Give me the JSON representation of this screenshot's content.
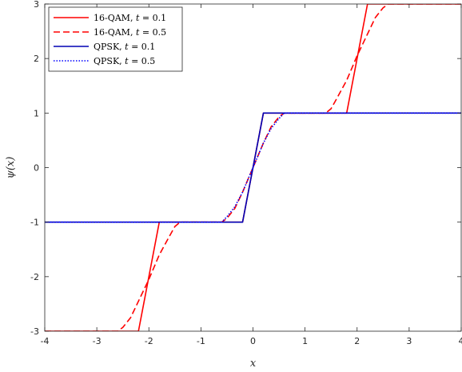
{
  "chart_data": {
    "type": "line",
    "xlabel": "x",
    "ylabel": "ψ(x)",
    "xlim": [
      -4,
      4
    ],
    "ylim": [
      -3,
      3
    ],
    "xticks": [
      -4,
      -3,
      -2,
      -1,
      0,
      1,
      2,
      3,
      4
    ],
    "yticks": [
      -3,
      -2,
      -1,
      0,
      1,
      2,
      3
    ],
    "xtick_labels": [
      "-4",
      "-3",
      "-2",
      "-1",
      "0",
      "1",
      "2",
      "3",
      "4"
    ],
    "ytick_labels": [
      "-3",
      "-2",
      "-1",
      "0",
      "1",
      "2",
      "3"
    ],
    "grid": false,
    "legend_position": "top-left",
    "series": [
      {
        "name": "16-QAM, t = 0.1",
        "legend_prefix": "16-QAM, ",
        "legend_var": "t",
        "legend_suffix": " = 0.1",
        "color": "#ff0000",
        "style": "solid",
        "x": [
          -4,
          -2.2,
          -1.8,
          -0.2,
          0.2,
          1.8,
          2.2,
          4
        ],
        "y": [
          -3,
          -3,
          -1,
          -1,
          1,
          1,
          3,
          3
        ]
      },
      {
        "name": "16-QAM, t = 0.5",
        "legend_prefix": "16-QAM, ",
        "legend_var": "t",
        "legend_suffix": " = 0.5",
        "color": "#ff0000",
        "style": "dashed",
        "x": [
          -4,
          -2.6,
          -2.5,
          -2.35,
          -2.2,
          -2.0,
          -1.8,
          -1.6,
          -1.5,
          -1.4,
          -0.6,
          -0.5,
          -0.35,
          -0.2,
          0,
          0.2,
          0.35,
          0.5,
          0.6,
          1.4,
          1.5,
          1.6,
          1.8,
          2.0,
          2.2,
          2.35,
          2.5,
          2.6,
          4
        ],
        "y": [
          -3,
          -3,
          -2.93,
          -2.75,
          -2.45,
          -2.05,
          -1.6,
          -1.25,
          -1.08,
          -1,
          -1,
          -0.93,
          -0.75,
          -0.45,
          0,
          0.45,
          0.75,
          0.93,
          1,
          1,
          1.08,
          1.25,
          1.6,
          2.05,
          2.45,
          2.75,
          2.93,
          3,
          3
        ]
      },
      {
        "name": "QPSK, t = 0.1",
        "legend_prefix": "QPSK, ",
        "legend_var": "t",
        "legend_suffix": " = 0.1",
        "color": "#0000b4",
        "style": "solid",
        "x": [
          -4,
          -0.2,
          0.2,
          4
        ],
        "y": [
          -1,
          -1,
          1,
          1
        ]
      },
      {
        "name": "QPSK, t = 0.5",
        "legend_prefix": "QPSK, ",
        "legend_var": "t",
        "legend_suffix": " = 0.5",
        "color": "#0000ff",
        "style": "dotted",
        "x": [
          -4,
          -0.6,
          -0.5,
          -0.35,
          -0.2,
          0,
          0.2,
          0.35,
          0.5,
          0.6,
          4
        ],
        "y": [
          -1,
          -1,
          -0.9,
          -0.72,
          -0.45,
          0,
          0.45,
          0.72,
          0.9,
          1,
          1
        ]
      }
    ]
  }
}
